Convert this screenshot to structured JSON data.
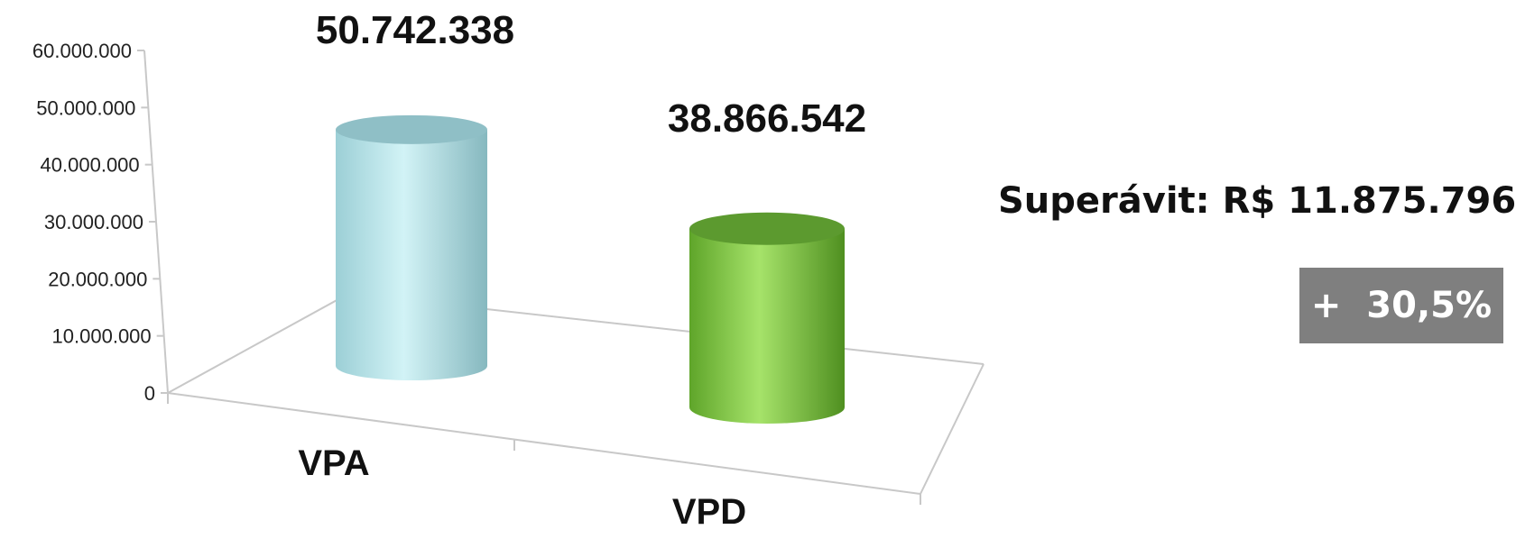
{
  "chart_data": {
    "type": "bar",
    "style": "3d-cylinder",
    "categories": [
      "VPA",
      "VPD"
    ],
    "values": [
      50742338,
      38866542
    ],
    "value_labels": [
      "50.742.338",
      "38.866.542"
    ],
    "colors": [
      "#c6ecf0",
      "#8fd14f"
    ],
    "ylim": [
      0,
      60000000
    ],
    "yticks": [
      "0",
      "10.000.000",
      "20.000.000",
      "30.000.000",
      "40.000.000",
      "50.000.000",
      "60.000.000"
    ],
    "title": "",
    "xlabel": "",
    "ylabel": "",
    "grid": false,
    "legend": "none"
  },
  "annotation": {
    "surplus_text": "Superávit: R$ 11.875.796",
    "percent_badge": "+  30,5%",
    "badge_color": "#7f7f7f"
  }
}
